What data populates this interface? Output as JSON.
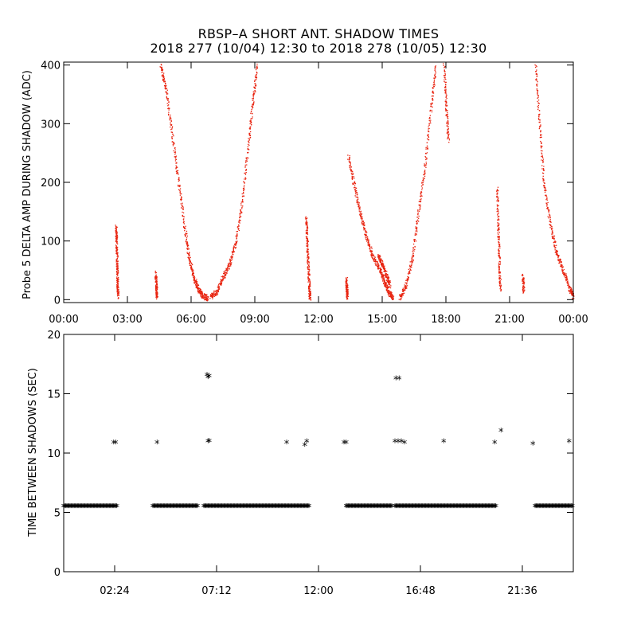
{
  "header": {
    "title_line1": "RBSP–A SHORT ANT. SHADOW TIMES",
    "title_line2": "2018 277 (10/04) 12:30 to 2018 278 (10/05) 12:30"
  },
  "chart_data": [
    {
      "type": "scatter",
      "ylabel": "Probe 5 DELTA AMP DURING SHADOW (ADC)",
      "xlim": [
        0,
        24
      ],
      "ylim": [
        -5,
        405
      ],
      "x_ticks": [
        0,
        3,
        6,
        9,
        12,
        15,
        18,
        21,
        24
      ],
      "x_tick_labels": [
        "00:00",
        "03:00",
        "06:00",
        "09:00",
        "12:00",
        "15:00",
        "18:00",
        "21:00",
        "00:00"
      ],
      "y_ticks": [
        0,
        100,
        200,
        300,
        400
      ],
      "y_tick_labels": [
        "0",
        "100",
        "200",
        "300",
        "400"
      ],
      "marker_color": "#e8230f",
      "series": [
        {
          "points": [
            [
              2.45,
              125
            ],
            [
              2.48,
              95
            ],
            [
              2.5,
              60
            ],
            [
              2.52,
              30
            ],
            [
              2.55,
              5
            ]
          ]
        },
        {
          "points": [
            [
              4.32,
              45
            ],
            [
              4.35,
              20
            ],
            [
              4.37,
              5
            ]
          ]
        },
        {
          "points": [
            [
              4.55,
              400
            ],
            [
              4.8,
              360
            ],
            [
              5.1,
              280
            ],
            [
              5.4,
              200
            ],
            [
              5.7,
              120
            ],
            [
              5.9,
              70
            ],
            [
              6.1,
              40
            ],
            [
              6.3,
              20
            ],
            [
              6.5,
              8
            ],
            [
              6.8,
              3
            ]
          ]
        },
        {
          "points": [
            [
              6.9,
              5
            ],
            [
              7.2,
              15
            ],
            [
              7.5,
              40
            ],
            [
              7.8,
              60
            ],
            [
              8.1,
              100
            ],
            [
              8.4,
              170
            ],
            [
              8.7,
              270
            ],
            [
              8.9,
              340
            ],
            [
              9.1,
              400
            ]
          ]
        },
        {
          "points": [
            [
              11.4,
              140
            ],
            [
              11.45,
              100
            ],
            [
              11.5,
              60
            ],
            [
              11.55,
              20
            ],
            [
              11.58,
              3
            ]
          ]
        },
        {
          "points": [
            [
              13.3,
              35
            ],
            [
              13.32,
              15
            ],
            [
              13.34,
              5
            ]
          ]
        },
        {
          "points": [
            [
              13.4,
              245
            ],
            [
              13.7,
              190
            ],
            [
              14.0,
              140
            ],
            [
              14.3,
              100
            ],
            [
              14.6,
              70
            ],
            [
              14.9,
              50
            ],
            [
              15.1,
              30
            ],
            [
              15.3,
              12
            ],
            [
              15.5,
              5
            ]
          ]
        },
        {
          "points": [
            [
              14.8,
              75
            ],
            [
              15.0,
              60
            ],
            [
              15.2,
              40
            ],
            [
              15.35,
              25
            ]
          ]
        },
        {
          "points": [
            [
              15.8,
              3
            ],
            [
              16.1,
              25
            ],
            [
              16.4,
              70
            ],
            [
              16.7,
              150
            ],
            [
              17.0,
              230
            ],
            [
              17.3,
              330
            ],
            [
              17.5,
              400
            ]
          ]
        },
        {
          "points": [
            [
              17.9,
              400
            ],
            [
              18.0,
              330
            ],
            [
              18.1,
              270
            ]
          ]
        },
        {
          "points": [
            [
              20.4,
              190
            ],
            [
              20.45,
              120
            ],
            [
              20.5,
              60
            ],
            [
              20.55,
              15
            ]
          ]
        },
        {
          "points": [
            [
              21.6,
              40
            ],
            [
              21.65,
              15
            ]
          ]
        },
        {
          "points": [
            [
              22.2,
              400
            ],
            [
              22.4,
              300
            ],
            [
              22.6,
              200
            ],
            [
              22.9,
              130
            ],
            [
              23.2,
              80
            ],
            [
              23.5,
              50
            ],
            [
              23.8,
              20
            ],
            [
              24.0,
              5
            ]
          ]
        }
      ]
    },
    {
      "type": "scatter",
      "ylabel": "TIME BETWEEN SHADOWS (SEC)",
      "xlim": [
        0,
        24
      ],
      "ylim": [
        0,
        20
      ],
      "x_ticks": [
        2.4,
        7.2,
        12.0,
        16.8,
        21.6
      ],
      "x_tick_labels": [
        "02:24",
        "07:12",
        "12:00",
        "16:48",
        "21:36"
      ],
      "y_ticks": [
        0,
        5,
        10,
        15,
        20
      ],
      "y_tick_labels": [
        "0",
        "5",
        "10",
        "15",
        "20"
      ],
      "marker": "*",
      "marker_color": "#000000",
      "baseline_value": 5.45,
      "baseline_segments": [
        [
          0.0,
          2.5
        ],
        [
          4.2,
          6.3
        ],
        [
          6.6,
          11.6
        ],
        [
          13.3,
          15.5
        ],
        [
          15.6,
          20.4
        ],
        [
          22.2,
          24.0
        ]
      ],
      "points": [
        [
          2.35,
          10.8
        ],
        [
          2.45,
          10.8
        ],
        [
          4.4,
          10.8
        ],
        [
          6.8,
          10.9
        ],
        [
          6.85,
          10.95
        ],
        [
          6.75,
          16.5
        ],
        [
          6.8,
          16.3
        ],
        [
          6.85,
          16.4
        ],
        [
          10.5,
          10.8
        ],
        [
          11.35,
          10.6
        ],
        [
          11.45,
          10.9
        ],
        [
          13.2,
          10.8
        ],
        [
          13.3,
          10.8
        ],
        [
          15.65,
          16.2
        ],
        [
          15.8,
          16.2
        ],
        [
          15.6,
          10.9
        ],
        [
          15.75,
          10.9
        ],
        [
          15.9,
          10.9
        ],
        [
          16.05,
          10.8
        ],
        [
          17.9,
          10.9
        ],
        [
          20.3,
          10.8
        ],
        [
          20.6,
          11.8
        ],
        [
          22.1,
          10.7
        ],
        [
          23.8,
          10.9
        ]
      ]
    }
  ]
}
